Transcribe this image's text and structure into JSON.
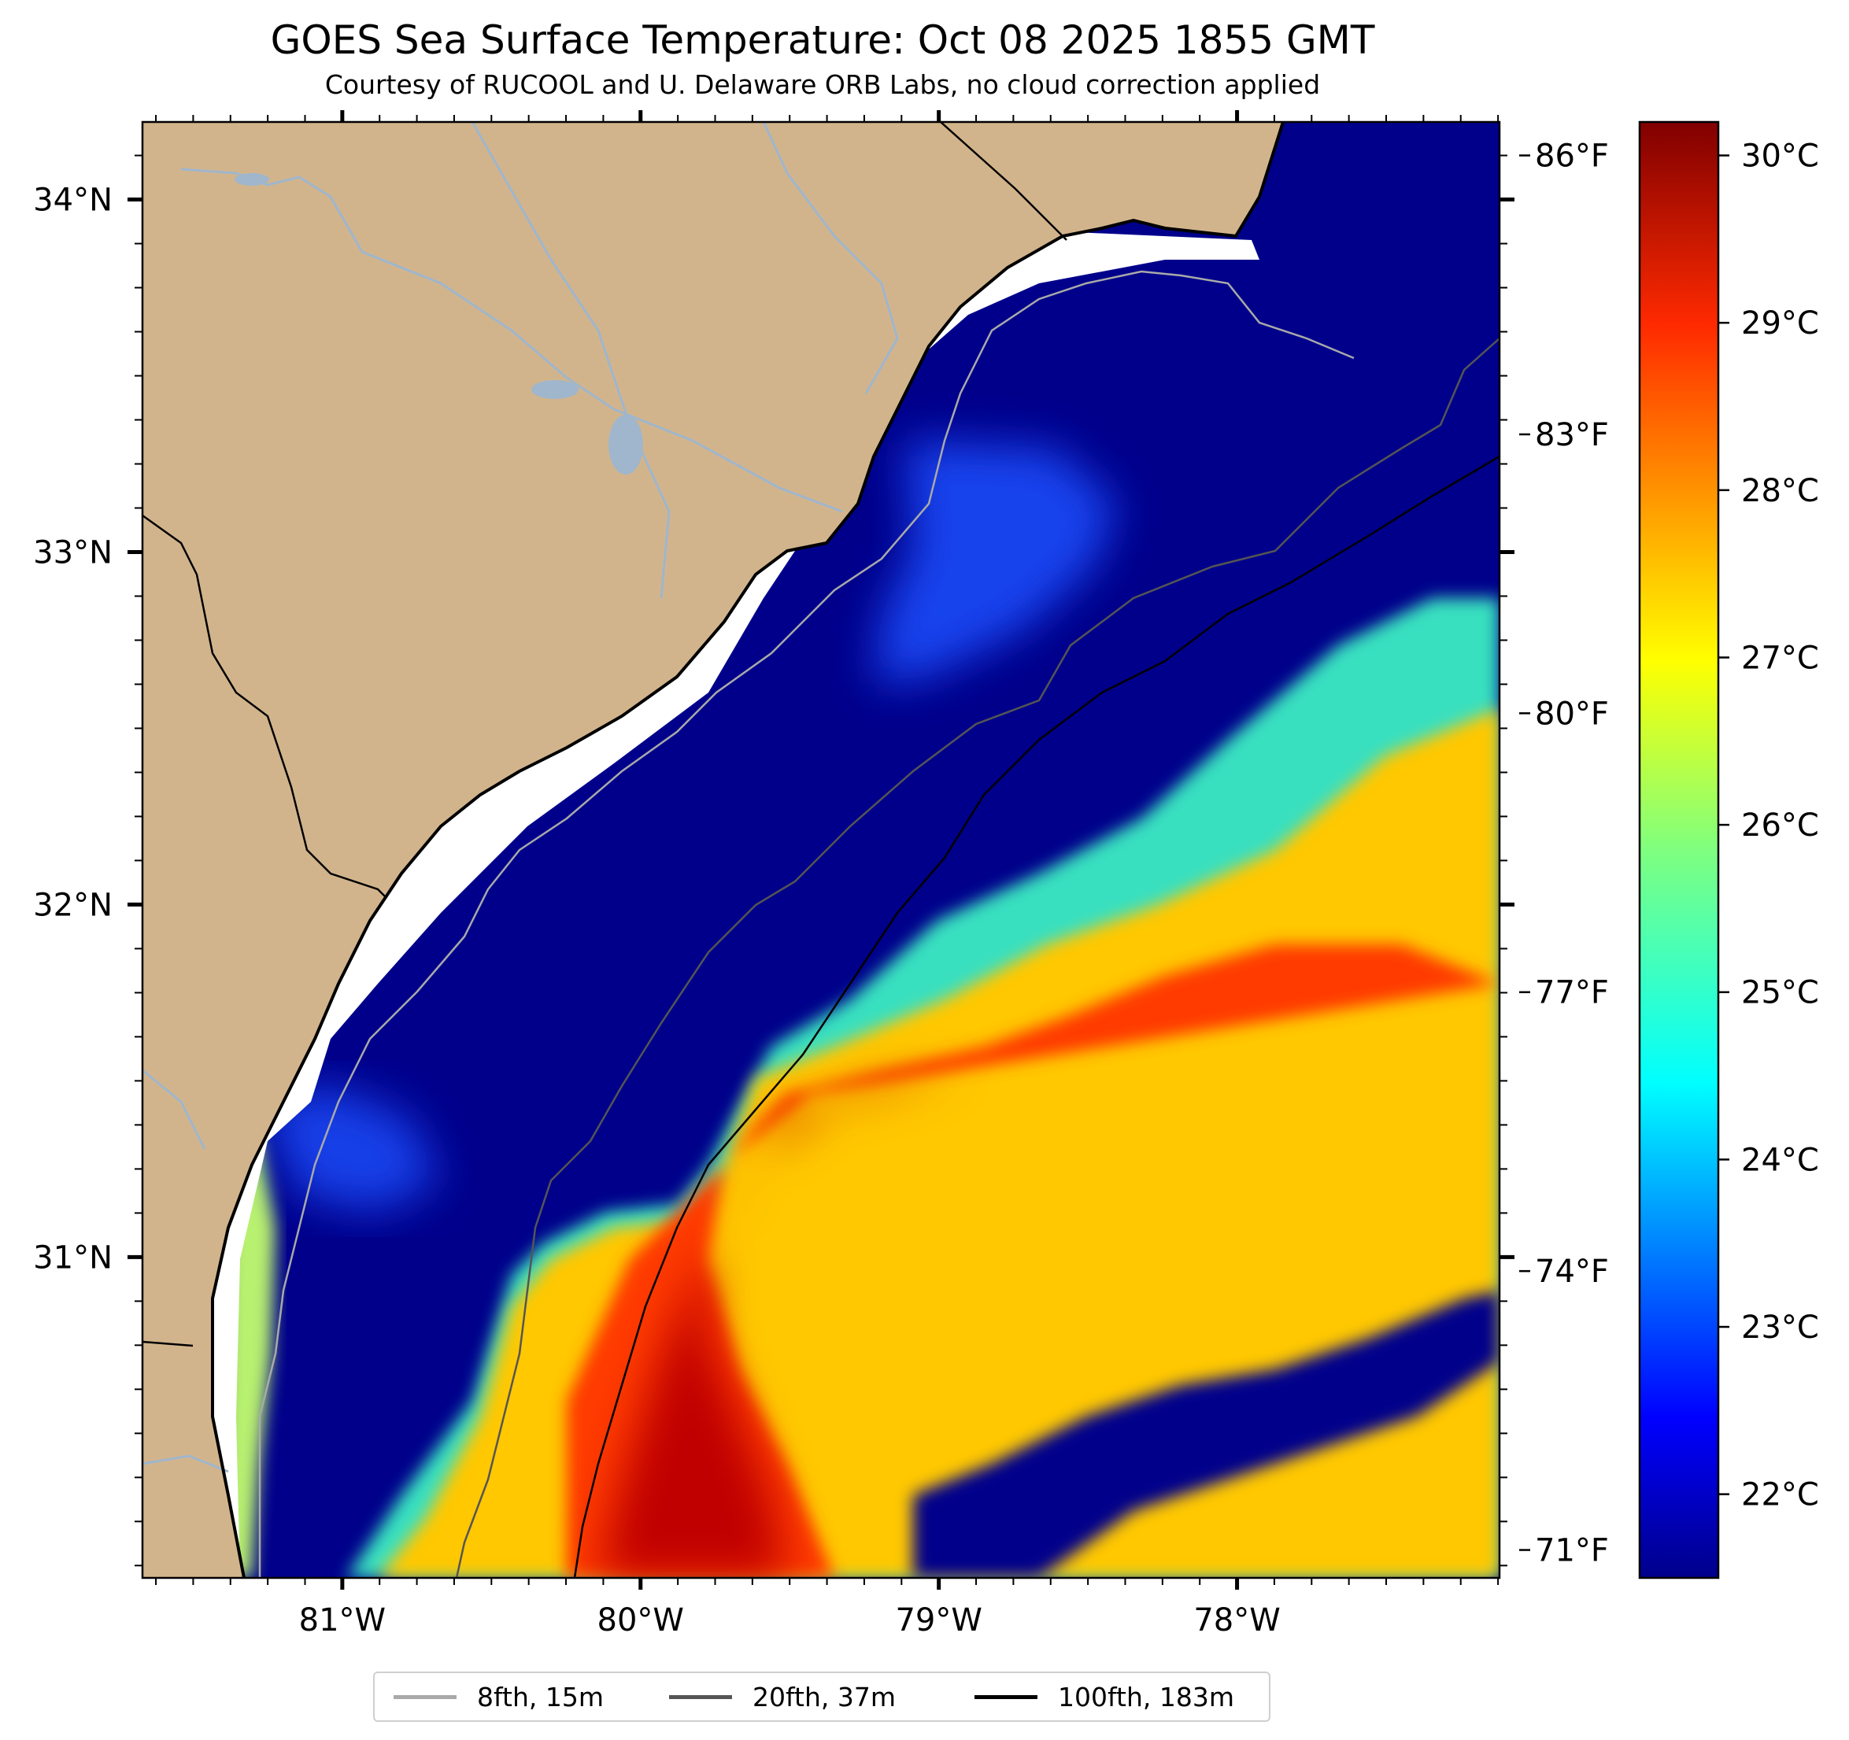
{
  "title": "GOES Sea Surface Temperature: Oct 08 2025 1855 GMT",
  "subtitle": "Courtesy of RUCOOL and U. Delaware ORB Labs, no cloud correction applied",
  "map": {
    "lon_range": [
      -81.67,
      -77.12
    ],
    "lat_range": [
      30.09,
      34.22
    ],
    "lon_ticks": [
      {
        "value": -81,
        "label": "81°W"
      },
      {
        "value": -80,
        "label": "80°W"
      },
      {
        "value": -79,
        "label": "79°W"
      },
      {
        "value": -78,
        "label": "78°W"
      }
    ],
    "lat_ticks": [
      {
        "value": 34,
        "label": "34°N"
      },
      {
        "value": 33,
        "label": "33°N"
      },
      {
        "value": 32,
        "label": "32°N"
      },
      {
        "value": 31,
        "label": "31°N"
      }
    ],
    "colors": {
      "land": "#d2b48c",
      "cold_water": "#00008b",
      "rivers": "#9fb6cd",
      "coastline": "#000000",
      "no_data": "#ffffff"
    }
  },
  "colorbar": {
    "colormap": "jet",
    "range_c": [
      21.5,
      30.2
    ],
    "celsius_ticks": [
      {
        "value": 30,
        "label": "30°C"
      },
      {
        "value": 29,
        "label": "29°C"
      },
      {
        "value": 28,
        "label": "28°C"
      },
      {
        "value": 27,
        "label": "27°C"
      },
      {
        "value": 26,
        "label": "26°C"
      },
      {
        "value": 25,
        "label": "25°C"
      },
      {
        "value": 24,
        "label": "24°C"
      },
      {
        "value": 23,
        "label": "23°C"
      },
      {
        "value": 22,
        "label": "22°C"
      }
    ],
    "fahrenheit_ticks": [
      {
        "value": 86,
        "label": "86°F"
      },
      {
        "value": 83,
        "label": "83°F"
      },
      {
        "value": 80,
        "label": "80°F"
      },
      {
        "value": 77,
        "label": "77°F"
      },
      {
        "value": 74,
        "label": "74°F"
      },
      {
        "value": 71,
        "label": "71°F"
      }
    ]
  },
  "legend": [
    {
      "label": "8fth, 15m",
      "color": "#a9a9a9"
    },
    {
      "label": "20fth, 37m",
      "color": "#555555"
    },
    {
      "label": "100fth, 183m",
      "color": "#000000"
    }
  ]
}
